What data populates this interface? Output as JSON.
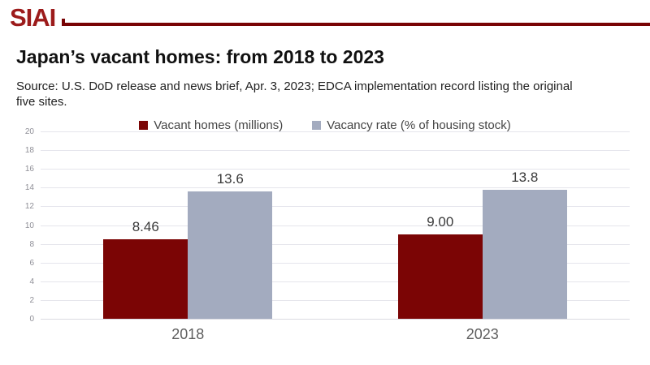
{
  "brand": {
    "logo_text": "SIAI",
    "accent_color": "#780304",
    "logo_color": "#9c1b1b"
  },
  "title": "Japan’s vacant homes: from 2018 to 2023",
  "source": "Source: U.S. DoD release and news brief, Apr. 3, 2023; EDCA implementation record listing the original five sites.",
  "chart_data": {
    "type": "bar",
    "title": "Japan’s vacant homes: from 2018 to 2023",
    "categories": [
      "2018",
      "2023"
    ],
    "series": [
      {
        "name": "Vacant homes (millions)",
        "color": "#7b0505",
        "values": [
          8.46,
          9.0
        ],
        "labels": [
          "8.46",
          "9.00"
        ]
      },
      {
        "name": "Vacancy rate (% of housing stock)",
        "color": "#a3abbf",
        "values": [
          13.6,
          13.8
        ],
        "labels": [
          "13.6",
          "13.8"
        ]
      }
    ],
    "xlabel": "",
    "ylabel": "",
    "ylim": [
      0,
      20
    ],
    "ytick_step": 2,
    "grid": true,
    "legend_position": "top-center"
  }
}
